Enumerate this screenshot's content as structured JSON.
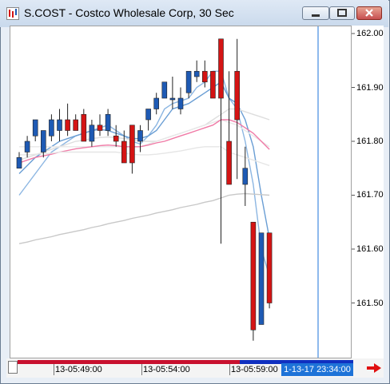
{
  "window": {
    "title": "S.COST - Costco Wholesale Corp, 30 Sec",
    "colors": {
      "up": "#1e5ab4",
      "down": "#d41414",
      "cursor": "#1e73d8"
    }
  },
  "chart_data": {
    "type": "candlestick",
    "ylim": [
      161.415,
      162.01
    ],
    "y_ticks": [
      162.0,
      161.9,
      161.8,
      161.7,
      161.6,
      161.5
    ],
    "y_tick_labels": [
      "162.00",
      "161.90",
      "161.80",
      "161.70",
      "161.60",
      "161.50"
    ],
    "x_tick_labels": [
      "13-05:49:00",
      "13-05:54:00",
      "13-05:59:00"
    ],
    "x_tick_index": [
      4.5,
      14.5,
      24.5
    ],
    "cursor_label": "1-13-17 23:34:00",
    "candles": [
      {
        "o": 161.75,
        "h": 161.78,
        "l": 161.75,
        "c": 161.77
      },
      {
        "o": 161.78,
        "h": 161.81,
        "l": 161.77,
        "c": 161.8
      },
      {
        "o": 161.81,
        "h": 161.84,
        "l": 161.8,
        "c": 161.84
      },
      {
        "o": 161.78,
        "h": 161.82,
        "l": 161.77,
        "c": 161.82
      },
      {
        "o": 161.81,
        "h": 161.85,
        "l": 161.8,
        "c": 161.84
      },
      {
        "o": 161.82,
        "h": 161.86,
        "l": 161.8,
        "c": 161.84
      },
      {
        "o": 161.84,
        "h": 161.87,
        "l": 161.81,
        "c": 161.82
      },
      {
        "o": 161.84,
        "h": 161.85,
        "l": 161.82,
        "c": 161.82
      },
      {
        "o": 161.85,
        "h": 161.86,
        "l": 161.8,
        "c": 161.8
      },
      {
        "o": 161.8,
        "h": 161.84,
        "l": 161.79,
        "c": 161.83
      },
      {
        "o": 161.83,
        "h": 161.85,
        "l": 161.81,
        "c": 161.82
      },
      {
        "o": 161.82,
        "h": 161.86,
        "l": 161.81,
        "c": 161.85
      },
      {
        "o": 161.81,
        "h": 161.83,
        "l": 161.79,
        "c": 161.8
      },
      {
        "o": 161.8,
        "h": 161.82,
        "l": 161.76,
        "c": 161.76
      },
      {
        "o": 161.83,
        "h": 161.83,
        "l": 161.74,
        "c": 161.76
      },
      {
        "o": 161.8,
        "h": 161.83,
        "l": 161.78,
        "c": 161.82
      },
      {
        "o": 161.84,
        "h": 161.86,
        "l": 161.82,
        "c": 161.86
      },
      {
        "o": 161.86,
        "h": 161.89,
        "l": 161.85,
        "c": 161.88
      },
      {
        "o": 161.88,
        "h": 161.91,
        "l": 161.88,
        "c": 161.91
      },
      {
        "o": 161.88,
        "h": 161.92,
        "l": 161.86,
        "c": 161.88
      },
      {
        "o": 161.86,
        "h": 161.9,
        "l": 161.85,
        "c": 161.88
      },
      {
        "o": 161.89,
        "h": 161.93,
        "l": 161.88,
        "c": 161.93
      },
      {
        "o": 161.92,
        "h": 161.95,
        "l": 161.91,
        "c": 161.93
      },
      {
        "o": 161.93,
        "h": 161.95,
        "l": 161.9,
        "c": 161.91
      },
      {
        "o": 161.93,
        "h": 161.93,
        "l": 161.88,
        "c": 161.88
      },
      {
        "o": 161.99,
        "h": 161.99,
        "l": 161.61,
        "c": 161.88
      },
      {
        "o": 161.8,
        "h": 161.93,
        "l": 161.72,
        "c": 161.72
      },
      {
        "o": 161.93,
        "h": 161.99,
        "l": 161.73,
        "c": 161.84
      },
      {
        "o": 161.72,
        "h": 161.79,
        "l": 161.68,
        "c": 161.75
      },
      {
        "o": 161.65,
        "h": 161.65,
        "l": 161.43,
        "c": 161.45
      },
      {
        "o": 161.46,
        "h": 161.63,
        "l": 161.46,
        "c": 161.63
      },
      {
        "o": 161.63,
        "h": 161.63,
        "l": 161.49,
        "c": 161.5
      }
    ],
    "lines": [
      {
        "color": "#8cb6e2",
        "values": [
          161.7,
          161.72,
          161.74,
          161.76,
          161.78,
          161.79,
          161.8,
          161.81,
          161.815,
          161.82,
          161.825,
          161.83,
          161.82,
          161.81,
          161.8,
          161.795,
          161.81,
          161.83,
          161.86,
          161.87,
          161.875,
          161.88,
          161.9,
          161.91,
          161.93,
          161.93,
          161.88,
          161.86,
          161.8,
          161.72,
          161.6,
          161.55
        ]
      },
      {
        "color": "#6a9ed4",
        "values": [
          161.74,
          161.755,
          161.77,
          161.78,
          161.79,
          161.8,
          161.805,
          161.81,
          161.815,
          161.82,
          161.822,
          161.82,
          161.815,
          161.81,
          161.805,
          161.805,
          161.81,
          161.82,
          161.84,
          161.86,
          161.865,
          161.87,
          161.88,
          161.89,
          161.9,
          161.91,
          161.88,
          161.87,
          161.84,
          161.79,
          161.7,
          161.62
        ]
      },
      {
        "color": "#dedede",
        "values": [
          161.765,
          161.77,
          161.775,
          161.78,
          161.785,
          161.79,
          161.795,
          161.8,
          161.802,
          161.805,
          161.807,
          161.808,
          161.807,
          161.805,
          161.803,
          161.8,
          161.8,
          161.8,
          161.805,
          161.81,
          161.815,
          161.82,
          161.825,
          161.83,
          161.84,
          161.85,
          161.86,
          161.86,
          161.855,
          161.85,
          161.845,
          161.84
        ]
      },
      {
        "color": "#e8e8e8",
        "values": [
          161.79,
          161.79,
          161.79,
          161.79,
          161.79,
          161.79,
          161.79,
          161.79,
          161.79,
          161.79,
          161.79,
          161.79,
          161.79,
          161.79,
          161.79,
          161.79,
          161.795,
          161.8,
          161.805,
          161.81,
          161.815,
          161.82,
          161.825,
          161.83,
          161.835,
          161.84,
          161.835,
          161.83,
          161.82,
          161.81,
          161.8,
          161.79
        ]
      },
      {
        "color": "#f07aa6",
        "values": [
          161.76,
          161.765,
          161.77,
          161.773,
          161.776,
          161.78,
          161.783,
          161.786,
          161.788,
          161.79,
          161.792,
          161.793,
          161.792,
          161.79,
          161.79,
          161.79,
          161.793,
          161.797,
          161.8,
          161.805,
          161.81,
          161.815,
          161.82,
          161.825,
          161.83,
          161.84,
          161.84,
          161.835,
          161.825,
          161.815,
          161.8,
          161.785
        ]
      },
      {
        "color": "#e6e6e6",
        "values": [
          161.775,
          161.775,
          161.776,
          161.777,
          161.778,
          161.78,
          161.78,
          161.78,
          161.78,
          161.78,
          161.78,
          161.78,
          161.78,
          161.778,
          161.776,
          161.775,
          161.775,
          161.776,
          161.778,
          161.78,
          161.782,
          161.785,
          161.788,
          161.79,
          161.79,
          161.79,
          161.78,
          161.775,
          161.77,
          161.765,
          161.76,
          161.755
        ]
      },
      {
        "color": "#c8c8c8",
        "values": [
          161.61,
          161.613,
          161.617,
          161.62,
          161.623,
          161.627,
          161.63,
          161.633,
          161.636,
          161.64,
          161.643,
          161.647,
          161.65,
          161.653,
          161.657,
          161.66,
          161.663,
          161.667,
          161.67,
          161.673,
          161.677,
          161.68,
          161.683,
          161.687,
          161.69,
          161.695,
          161.7,
          161.702,
          161.703,
          161.702,
          161.701,
          161.7
        ]
      }
    ]
  }
}
